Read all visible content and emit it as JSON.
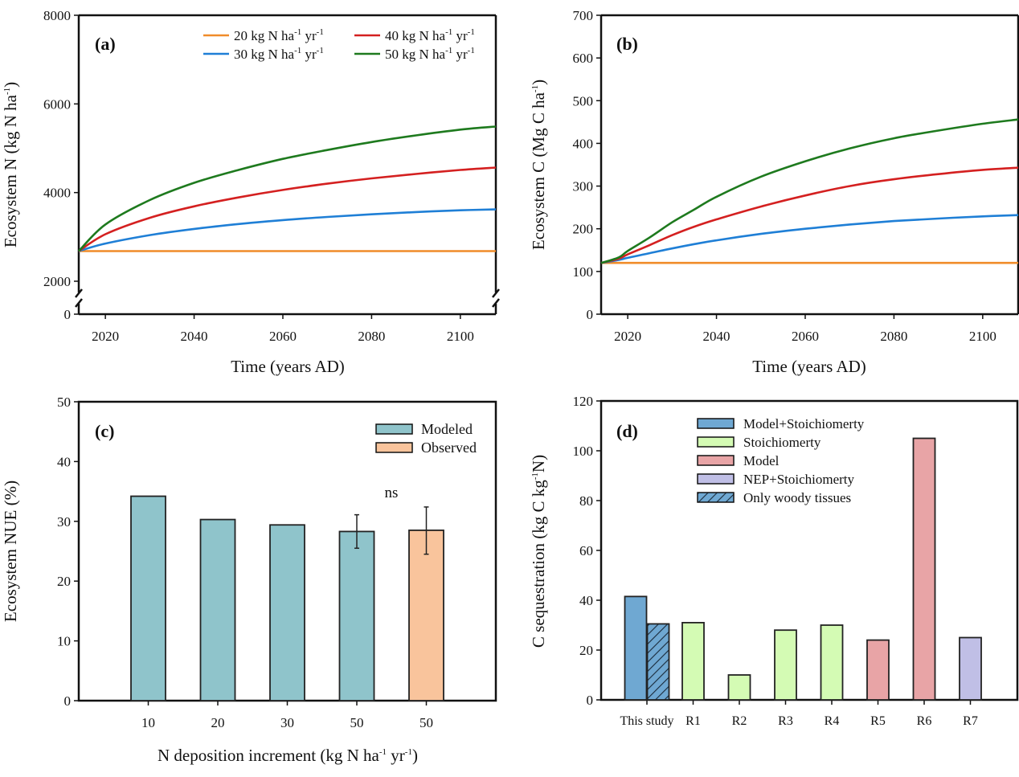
{
  "chart_data": [
    {
      "id": "a",
      "type": "line",
      "panel_label": "(a)",
      "xlabel": "Time (years AD)",
      "ylabel": "Ecosystem N (kg N ha-1)",
      "ylabel_parts": {
        "main": "Ecosystem N (kg N ha",
        "sup": "-1",
        "end": ")"
      },
      "xlim": [
        2014,
        2108
      ],
      "ylim": [
        0,
        8000
      ],
      "y_axis_break": [
        0,
        2000
      ],
      "x_ticks": [
        2020,
        2040,
        2060,
        2080,
        2100
      ],
      "y_ticks": [
        0,
        2000,
        4000,
        6000,
        8000
      ],
      "grid": false,
      "legend_position": "top-right",
      "x": [
        2014,
        2020,
        2030,
        2040,
        2050,
        2060,
        2070,
        2080,
        2090,
        2100,
        2108
      ],
      "series": [
        {
          "name": "20 kg N ha-1 yr-1",
          "rate": "20",
          "color": "#f08c2a",
          "values": [
            2680,
            2680,
            2680,
            2680,
            2680,
            2680,
            2680,
            2680,
            2680,
            2680,
            2680
          ]
        },
        {
          "name": "30 kg N ha-1 yr-1",
          "rate": "30",
          "color": "#1f7fd6",
          "values": [
            2680,
            2850,
            3040,
            3180,
            3290,
            3380,
            3450,
            3510,
            3560,
            3600,
            3620
          ]
        },
        {
          "name": "40 kg N ha-1 yr-1",
          "rate": "40",
          "color": "#d42020",
          "values": [
            2680,
            3060,
            3430,
            3690,
            3890,
            4060,
            4200,
            4320,
            4420,
            4510,
            4565
          ]
        },
        {
          "name": "50 kg N ha-1 yr-1",
          "rate": "50",
          "color": "#1e7a1e",
          "values": [
            2680,
            3280,
            3830,
            4220,
            4510,
            4760,
            4960,
            5140,
            5290,
            5420,
            5490
          ]
        }
      ]
    },
    {
      "id": "b",
      "type": "line",
      "panel_label": "(b)",
      "xlabel": "Time (years AD)",
      "ylabel": "Ecosystem C (Mg C ha-1)",
      "ylabel_parts": {
        "main": "Ecosystem C (Mg C ha",
        "sup": "-1",
        "end": ")"
      },
      "xlim": [
        2014,
        2108
      ],
      "ylim": [
        0,
        700
      ],
      "x_ticks": [
        2020,
        2040,
        2060,
        2080,
        2100
      ],
      "y_ticks": [
        0,
        100,
        200,
        300,
        400,
        500,
        600,
        700
      ],
      "grid": false,
      "x": [
        2014,
        2018,
        2020,
        2025,
        2030,
        2035,
        2040,
        2050,
        2060,
        2070,
        2080,
        2090,
        2100,
        2108
      ],
      "series": [
        {
          "name": "20 kg N ha-1 yr-1",
          "color": "#f08c2a",
          "values": [
            120,
            120,
            120,
            120,
            120,
            120,
            120,
            120,
            120,
            120,
            120,
            120,
            120,
            120
          ]
        },
        {
          "name": "30 kg N ha-1 yr-1",
          "color": "#1f7fd6",
          "values": [
            120,
            127,
            132,
            143,
            154,
            164,
            173,
            188,
            200,
            210,
            218,
            224,
            229,
            232
          ]
        },
        {
          "name": "40 kg N ha-1 yr-1",
          "color": "#d42020",
          "values": [
            120,
            130,
            140,
            162,
            185,
            205,
            222,
            252,
            278,
            300,
            316,
            328,
            338,
            343
          ]
        },
        {
          "name": "50 kg N ha-1 yr-1",
          "color": "#1e7a1e",
          "values": [
            120,
            133,
            148,
            180,
            215,
            245,
            275,
            322,
            358,
            388,
            412,
            430,
            446,
            456
          ]
        }
      ]
    },
    {
      "id": "c",
      "type": "bar",
      "panel_label": "(c)",
      "xlabel": "N deposition increment (kg N ha-1 yr-1)",
      "xlabel_parts": {
        "main": "N deposition increment (kg N ha",
        "sup1": "-1",
        "mid": " yr",
        "sup2": "-1",
        "end": ")"
      },
      "ylabel": "Ecosystem NUE (%)",
      "ylim": [
        0,
        50
      ],
      "y_ticks": [
        0,
        10,
        20,
        30,
        40,
        50
      ],
      "grid": false,
      "legend_position": "top-right",
      "categories": [
        "10",
        "20",
        "30",
        "50",
        "50"
      ],
      "values": [
        34.2,
        30.3,
        29.4,
        28.3,
        28.5
      ],
      "groups": [
        "Modeled",
        "Modeled",
        "Modeled",
        "Modeled",
        "Observed"
      ],
      "error_low": [
        null,
        null,
        null,
        25.5,
        24.5
      ],
      "error_high": [
        null,
        null,
        null,
        31.1,
        32.4
      ],
      "annotation": "ns",
      "legend": [
        {
          "name": "Modeled",
          "color": "#8fc4cb"
        },
        {
          "name": "Observed",
          "color": "#f9c49c"
        }
      ]
    },
    {
      "id": "d",
      "type": "bar",
      "panel_label": "(d)",
      "xlabel": "",
      "ylabel": "C sequestration (kg C kg-1N)",
      "ylabel_parts": {
        "main": "C sequestration (kg C kg",
        "sup": "-1",
        "end": "N)"
      },
      "ylim": [
        0,
        120
      ],
      "y_ticks": [
        0,
        20,
        40,
        60,
        80,
        100,
        120
      ],
      "grid": false,
      "legend_position": "top-left",
      "categories": [
        "This study",
        "R1",
        "R2",
        "R3",
        "R4",
        "R5",
        "R6",
        "R7"
      ],
      "bars": [
        {
          "category": "This study",
          "value": 41.5,
          "method": "Model+Stoichiomerty",
          "offset": "left"
        },
        {
          "category": "This study",
          "value": 30.5,
          "method": "Only woody tissues",
          "offset": "right"
        },
        {
          "category": "R1",
          "value": 31,
          "method": "Stoichiomerty"
        },
        {
          "category": "R2",
          "value": 10,
          "method": "Stoichiomerty"
        },
        {
          "category": "R3",
          "value": 28,
          "method": "Stoichiomerty"
        },
        {
          "category": "R4",
          "value": 30,
          "method": "Stoichiomerty"
        },
        {
          "category": "R5",
          "value": 24,
          "method": "Model"
        },
        {
          "category": "R6",
          "value": 105,
          "method": "Model"
        },
        {
          "category": "R7",
          "value": 25,
          "method": "NEP+Stoichiomerty"
        }
      ],
      "legend": [
        {
          "name": "Model+Stoichiomerty",
          "color": "#6fa8d2",
          "hatch": false
        },
        {
          "name": "Stoichiomerty",
          "color": "#d4fbb4",
          "hatch": false
        },
        {
          "name": "Model",
          "color": "#e8a4a6",
          "hatch": false
        },
        {
          "name": "NEP+Stoichiomerty",
          "color": "#c0bfe6",
          "hatch": false
        },
        {
          "name": "Only woody tissues",
          "color": "#6fa8d2",
          "hatch": true
        }
      ]
    }
  ]
}
